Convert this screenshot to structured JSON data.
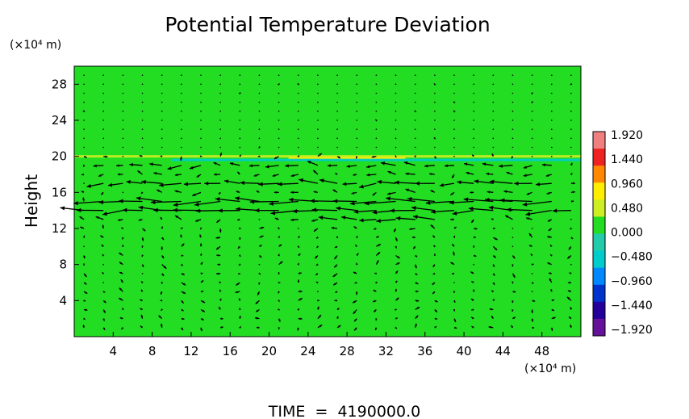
{
  "chart_data": {
    "type": "heatmap",
    "title": "Potential Temperature Deviation",
    "ylabel": "Height",
    "y_unit_label": "(×10⁴ m)",
    "x_unit_label": "(×10⁴ m)",
    "footer": "TIME  =  4190000.0",
    "xlim": [
      0,
      52
    ],
    "ylim": [
      0,
      30
    ],
    "x_ticks": [
      "4",
      "8",
      "12",
      "16",
      "20",
      "24",
      "28",
      "32",
      "36",
      "40",
      "44",
      "48"
    ],
    "y_ticks": [
      "4",
      "8",
      "12",
      "16",
      "20",
      "24",
      "28"
    ],
    "field_background_value": 0.0,
    "field_background_color": "#22dd22",
    "colorbar": {
      "tick_labels": [
        "1.920",
        "1.440",
        "0.960",
        "0.480",
        "0.000",
        "−0.480",
        "−0.960",
        "−1.440",
        "−1.920"
      ],
      "min": -1.92,
      "max": 1.92,
      "colors": [
        "#f08080",
        "#ee2222",
        "#ff8800",
        "#ffee00",
        "#ccee22",
        "#22dd22",
        "#22ccaa",
        "#00cccc",
        "#0088ff",
        "#0033cc",
        "#220099",
        "#661199"
      ]
    },
    "anomaly_bands": [
      {
        "x_start": 0,
        "x_end": 52,
        "height": 20.0,
        "value": 0.48
      },
      {
        "x_start": 22,
        "x_end": 34,
        "height": 19.8,
        "value": 0.96
      },
      {
        "x_start": 10,
        "x_end": 52,
        "height": 19.6,
        "value": -0.48
      }
    ],
    "wind_jets": [
      {
        "height": 13.8,
        "x_start": 0,
        "x_end": 52,
        "strength": 0.9
      },
      {
        "height": 15.0,
        "x_start": 3,
        "x_end": 50,
        "strength": 1.0
      },
      {
        "height": 16.8,
        "x_start": 2,
        "x_end": 49,
        "strength": 0.75
      },
      {
        "height": 18.6,
        "x_start": 2,
        "x_end": 50,
        "strength": 0.6
      },
      {
        "height": 12.8,
        "x_start": 26,
        "x_end": 38,
        "strength": 0.6
      }
    ]
  }
}
